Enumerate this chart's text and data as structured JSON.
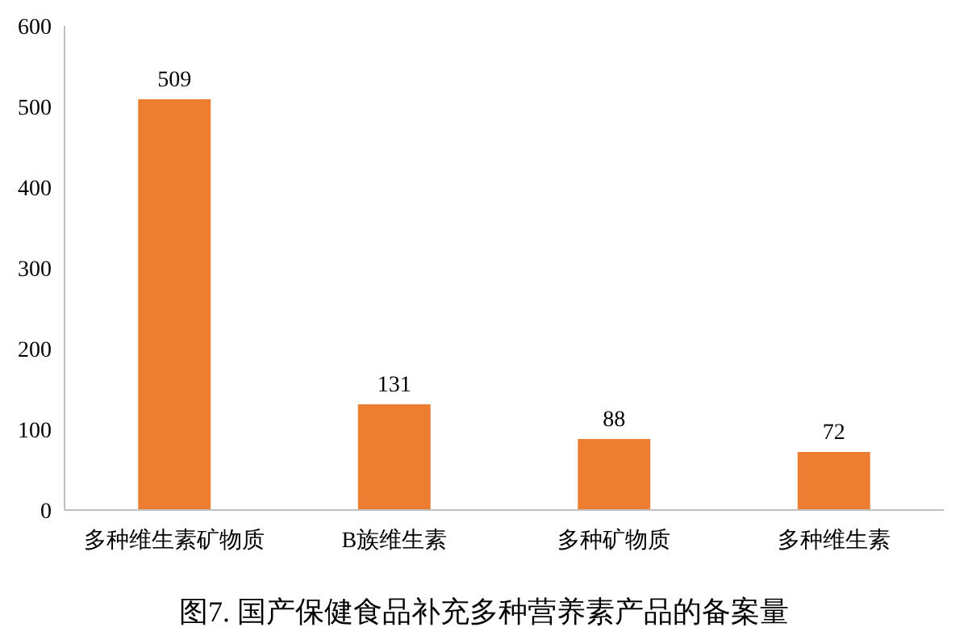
{
  "chart_data": {
    "type": "bar",
    "title": "图7. 国产保健食品补充多种营养素产品的备案量",
    "categories": [
      "多种维生素矿物质",
      "B族维生素",
      "多种矿物质",
      "多种维生素"
    ],
    "values": [
      509,
      131,
      88,
      72
    ],
    "color": "#ed7d31",
    "ylim": [
      0,
      600
    ],
    "yticks": [
      0,
      100,
      200,
      300,
      400,
      500,
      600
    ],
    "data_labels": true,
    "grid": false
  }
}
